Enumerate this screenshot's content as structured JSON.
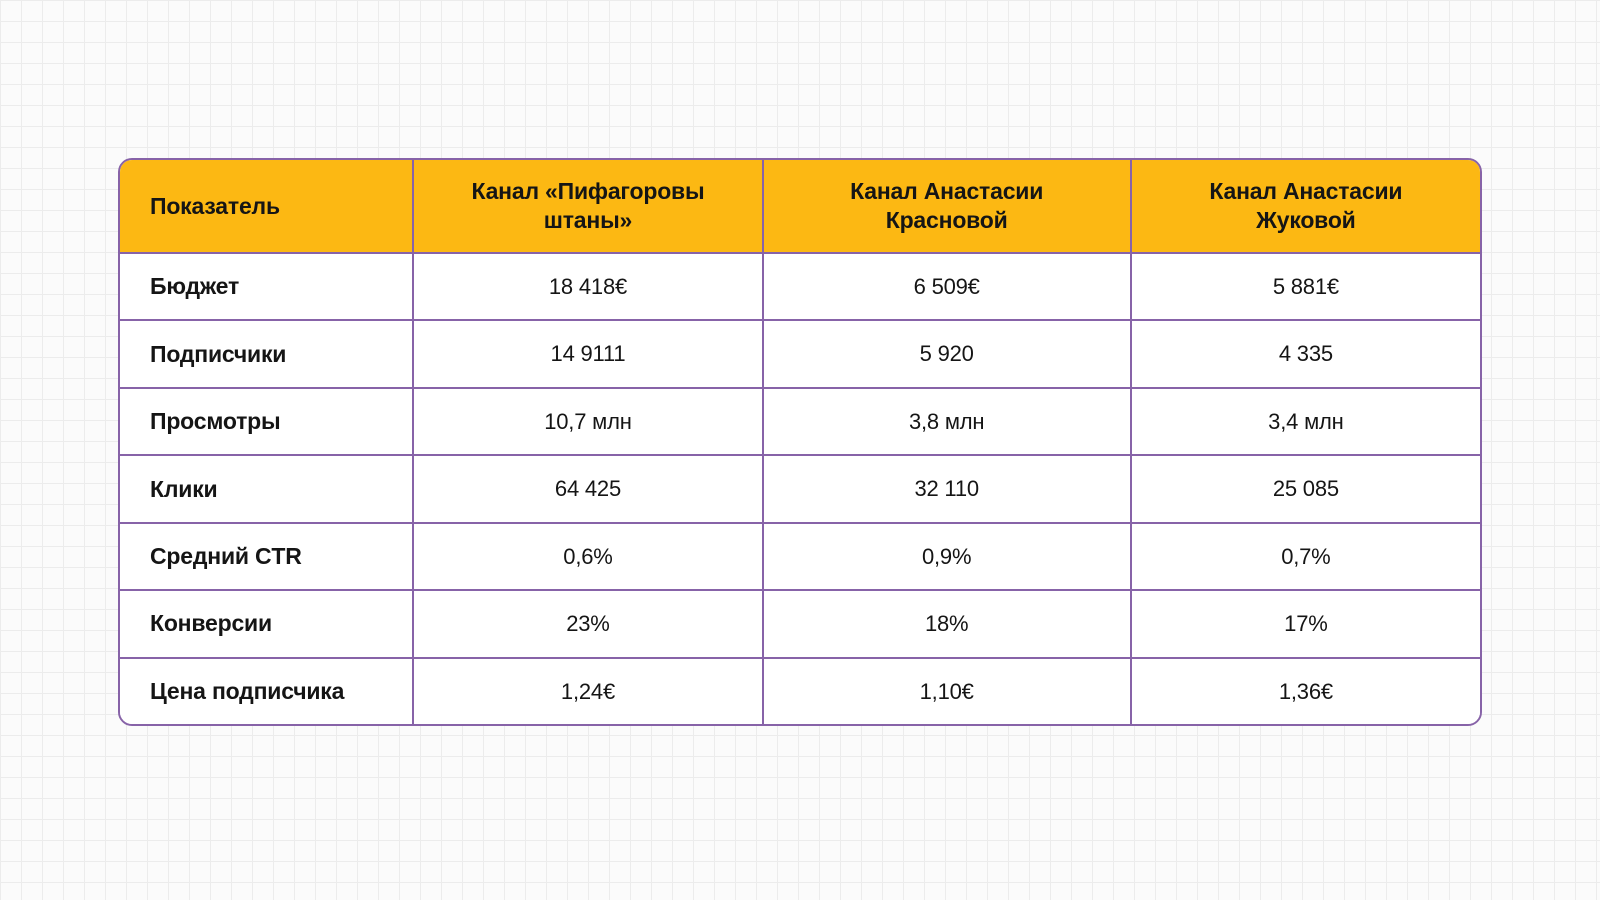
{
  "colors": {
    "page_bg": "#FBFBFB",
    "grid_line": "#ECECEC",
    "header_bg": "#FCB813",
    "border": "#8763A8",
    "text": "#151515"
  },
  "chart_data": {
    "type": "table",
    "columns": [
      "Показатель",
      "Канал «Пифагоровы штаны»",
      "Канал Анастасии Красновой",
      "Канал Анастасии Жуковой"
    ],
    "rows": [
      {
        "label": "Бюджет",
        "values": [
          "18 418€",
          "6 509€",
          "5 881€"
        ]
      },
      {
        "label": "Подписчики",
        "values": [
          "14 9111",
          "5 920",
          "4 335"
        ]
      },
      {
        "label": "Просмотры",
        "values": [
          "10,7 млн",
          "3,8 млн",
          "3,4 млн"
        ]
      },
      {
        "label": "Клики",
        "values": [
          "64 425",
          "32 110",
          "25 085"
        ]
      },
      {
        "label": "Средний CTR",
        "values": [
          "0,6%",
          "0,9%",
          "0,7%"
        ]
      },
      {
        "label": "Конверсии",
        "values": [
          "23%",
          "18%",
          "17%"
        ]
      },
      {
        "label": "Цена подписчика",
        "values": [
          "1,24€",
          "1,10€",
          "1,36€"
        ]
      }
    ]
  }
}
